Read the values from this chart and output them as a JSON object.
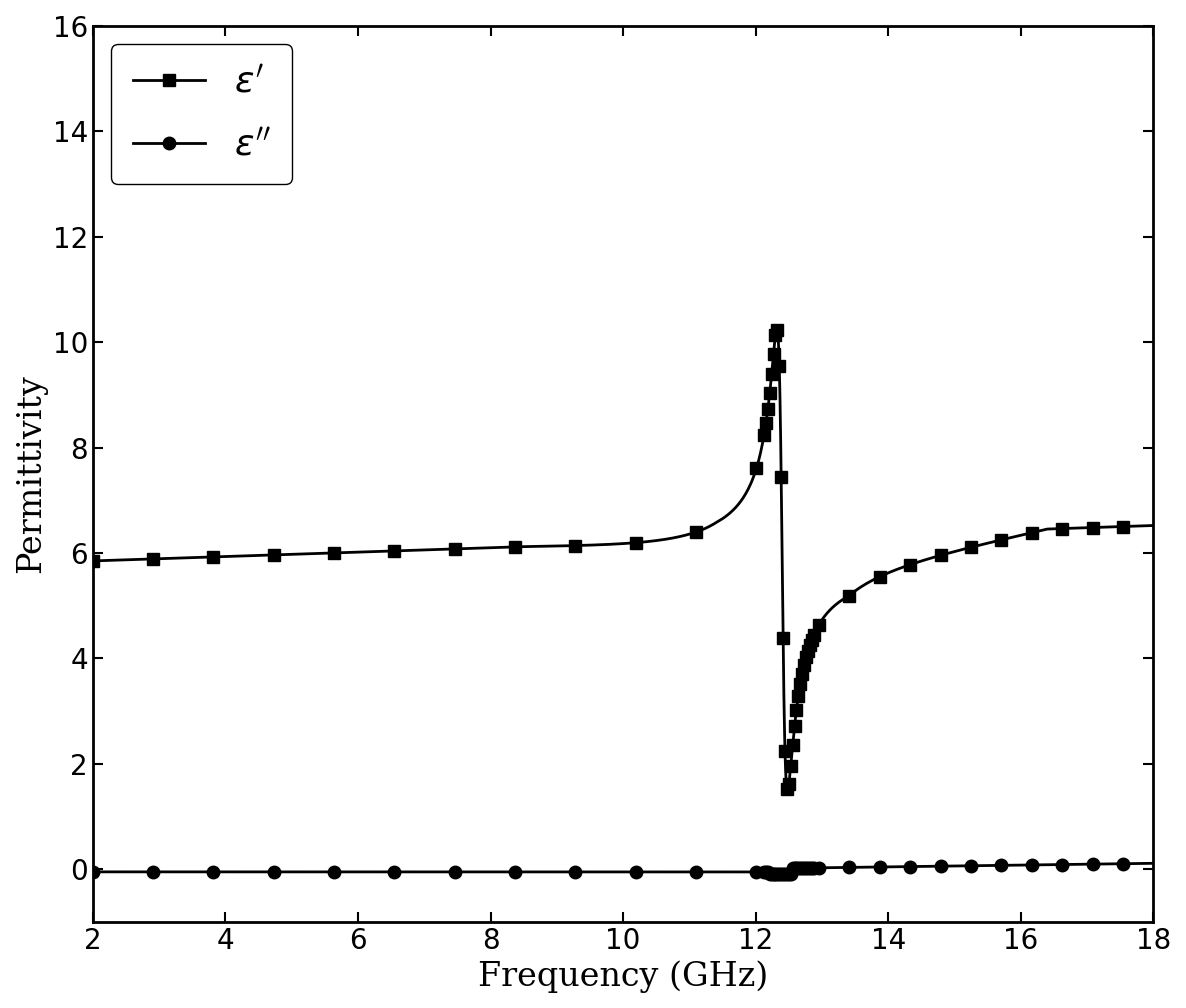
{
  "xlabel": "Frequency (GHz)",
  "ylabel": "Permittivity",
  "xlim": [
    2,
    18
  ],
  "ylim": [
    -1,
    16
  ],
  "yticks": [
    0,
    2,
    4,
    6,
    8,
    10,
    12,
    14,
    16
  ],
  "xticks": [
    2,
    4,
    6,
    8,
    10,
    12,
    14,
    16,
    18
  ],
  "resonance_freq": 12.4,
  "eps_inf": 5.85,
  "eps_end": 6.5,
  "eps_peak": 14.6,
  "eps_dip": 5.0,
  "color": "#000000",
  "linewidth": 2.0,
  "markersize_square": 9,
  "markersize_circle": 9,
  "figsize": [
    11.86,
    10.08
  ],
  "dpi": 100,
  "fontsize_label": 24,
  "fontsize_tick": 20,
  "legend_fontsize": 26
}
